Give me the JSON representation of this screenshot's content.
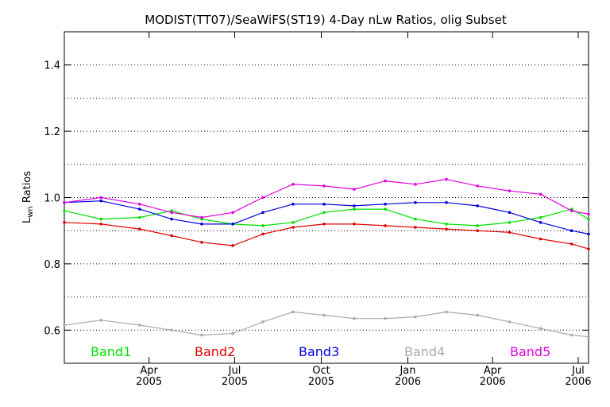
{
  "chart_data": {
    "type": "line",
    "title": "MODIST(TT07)/SeaWiFS(ST19) 4-Day nLw Ratios, olig Subset",
    "ylabel_main": "L",
    "ylabel_sub": "wn",
    "ylabel_rest": " Ratios",
    "ylim": [
      0.5,
      1.5
    ],
    "y_ticks": [
      0.6,
      0.8,
      1.0,
      1.2,
      1.4
    ],
    "y_tick_labels": [
      "0.6",
      "0.8",
      "1.0",
      "1.2",
      "1.4"
    ],
    "y_grid": [
      0.6,
      0.7,
      0.8,
      0.9,
      1.0,
      1.1,
      1.2,
      1.3,
      1.4
    ],
    "xlim": [
      "2005-01-01",
      "2006-07-12"
    ],
    "x_ticks": [
      {
        "date": "2005-04-01",
        "month": "Apr",
        "year": "2005"
      },
      {
        "date": "2005-07-01",
        "month": "Jul",
        "year": "2005"
      },
      {
        "date": "2005-10-01",
        "month": "Oct",
        "year": "2005"
      },
      {
        "date": "2006-01-01",
        "month": "Jan",
        "year": "2006"
      },
      {
        "date": "2006-04-01",
        "month": "Apr",
        "year": "2006"
      },
      {
        "date": "2006-07-01",
        "month": "Jul",
        "year": "2006"
      }
    ],
    "x": [
      "2005-01-01",
      "2005-02-09",
      "2005-03-22",
      "2005-04-25",
      "2005-05-27",
      "2005-06-29",
      "2005-07-31",
      "2005-09-01",
      "2005-10-04",
      "2005-11-05",
      "2005-12-08",
      "2006-01-09",
      "2006-02-11",
      "2006-03-16",
      "2006-04-19",
      "2006-05-22",
      "2006-06-24",
      "2006-07-12"
    ],
    "series": [
      {
        "name": "Band1",
        "color": "#00e000",
        "values": [
          0.96,
          0.935,
          0.94,
          0.96,
          0.935,
          0.92,
          0.915,
          0.925,
          0.955,
          0.965,
          0.965,
          0.935,
          0.92,
          0.915,
          0.925,
          0.94,
          0.965,
          0.935
        ]
      },
      {
        "name": "Band2",
        "color": "#e00000",
        "values": [
          0.925,
          0.92,
          0.905,
          0.885,
          0.865,
          0.855,
          0.89,
          0.91,
          0.92,
          0.92,
          0.915,
          0.91,
          0.905,
          0.9,
          0.895,
          0.875,
          0.86,
          0.845
        ]
      },
      {
        "name": "Band3",
        "color": "#0000e0",
        "values": [
          0.985,
          0.99,
          0.965,
          0.935,
          0.92,
          0.92,
          0.955,
          0.98,
          0.98,
          0.975,
          0.98,
          0.985,
          0.985,
          0.975,
          0.955,
          0.925,
          0.9,
          0.89
        ]
      },
      {
        "name": "Band4",
        "color": "#aaaaaa",
        "values": [
          0.615,
          0.63,
          0.615,
          0.6,
          0.585,
          0.59,
          0.625,
          0.655,
          0.645,
          0.635,
          0.635,
          0.64,
          0.655,
          0.645,
          0.625,
          0.605,
          0.585,
          0.58
        ]
      },
      {
        "name": "Band5",
        "color": "#e000e0",
        "values": [
          0.985,
          1.0,
          0.98,
          0.955,
          0.94,
          0.955,
          1.0,
          1.04,
          1.035,
          1.025,
          1.05,
          1.04,
          1.055,
          1.035,
          1.02,
          1.01,
          0.96,
          0.95
        ]
      }
    ],
    "legend_position": "bottom-inside",
    "grid": "horizontal-dotted"
  }
}
